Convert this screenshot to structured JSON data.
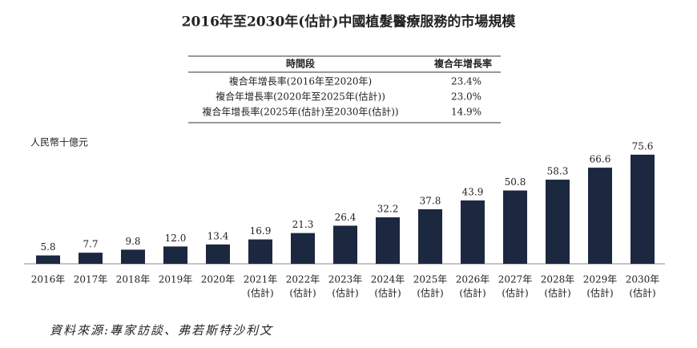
{
  "chart_data": {
    "type": "bar",
    "title": "2016年至2030年(估計)中國植髮醫療服務的市場規模",
    "unit_label": "人民幣十億元",
    "categories": [
      "2016年",
      "2017年",
      "2018年",
      "2019年",
      "2020年",
      "2021年",
      "2022年",
      "2023年",
      "2024年",
      "2025年",
      "2026年",
      "2027年",
      "2028年",
      "2029年",
      "2030年"
    ],
    "category_sublabels": [
      null,
      null,
      null,
      null,
      null,
      "(估計)",
      "(估計)",
      "(估計)",
      "(估計)",
      "(估計)",
      "(估計)",
      "(估計)",
      "(估計)",
      "(估計)",
      "(估計)"
    ],
    "values": [
      5.8,
      7.7,
      9.8,
      12.0,
      13.4,
      16.9,
      21.3,
      26.4,
      32.2,
      37.8,
      43.9,
      50.8,
      58.3,
      66.6,
      75.6
    ],
    "value_labels": [
      "5.8",
      "7.7",
      "9.8",
      "12.0",
      "13.4",
      "16.9",
      "21.3",
      "26.4",
      "32.2",
      "37.8",
      "43.9",
      "50.8",
      "58.3",
      "66.6",
      "75.6"
    ],
    "color": "#1c2740",
    "source": "資料來源:專家訪談、弗若斯特沙利文"
  },
  "table": {
    "header": [
      "時間段",
      "複合年增長率"
    ],
    "rows": [
      [
        "複合年增長率(2016年至2020年)",
        "23.4%"
      ],
      [
        "複合年增長率(2020年至2025年(估計))",
        "23.0%"
      ],
      [
        "複合年增長率(2025年(估計)至2030年(估計))",
        "14.9%"
      ]
    ]
  }
}
